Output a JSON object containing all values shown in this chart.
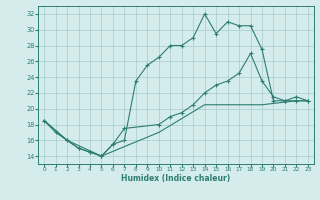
{
  "xlabel": "Humidex (Indice chaleur)",
  "bg_color": "#d4ecec",
  "line_color": "#2e7d72",
  "grid_color": "#a8cccc",
  "xlim": [
    -0.5,
    23.5
  ],
  "ylim": [
    13.0,
    33.0
  ],
  "yticks": [
    14,
    16,
    18,
    20,
    22,
    24,
    26,
    28,
    30,
    32
  ],
  "xticks": [
    0,
    1,
    2,
    3,
    4,
    5,
    6,
    7,
    8,
    9,
    10,
    11,
    12,
    13,
    14,
    15,
    16,
    17,
    18,
    19,
    20,
    21,
    22,
    23
  ],
  "line1_x": [
    0,
    1,
    2,
    3,
    4,
    5,
    6,
    7,
    8,
    9,
    10,
    11,
    12,
    13,
    14,
    15,
    16,
    17,
    18,
    19,
    20,
    21,
    22,
    23
  ],
  "line1_y": [
    18.5,
    17.0,
    16.0,
    15.0,
    14.5,
    14.0,
    15.5,
    16.0,
    23.5,
    25.5,
    26.5,
    28.0,
    28.0,
    29.0,
    32.0,
    29.5,
    31.0,
    30.5,
    30.5,
    27.5,
    21.0,
    21.0,
    21.0,
    21.0
  ],
  "line2_x": [
    0,
    2,
    3,
    4,
    5,
    6,
    7,
    10,
    11,
    12,
    13,
    14,
    15,
    16,
    17,
    18,
    19,
    20,
    21,
    22,
    23
  ],
  "line2_y": [
    18.5,
    16.0,
    15.0,
    14.5,
    14.0,
    15.5,
    17.5,
    18.0,
    19.0,
    19.5,
    20.5,
    22.0,
    23.0,
    23.5,
    24.5,
    27.0,
    23.5,
    21.5,
    21.0,
    21.5,
    21.0
  ],
  "line3_x": [
    0,
    2,
    5,
    10,
    14,
    19,
    22,
    23
  ],
  "line3_y": [
    18.5,
    16.0,
    14.0,
    17.0,
    20.5,
    20.5,
    21.0,
    21.0
  ]
}
